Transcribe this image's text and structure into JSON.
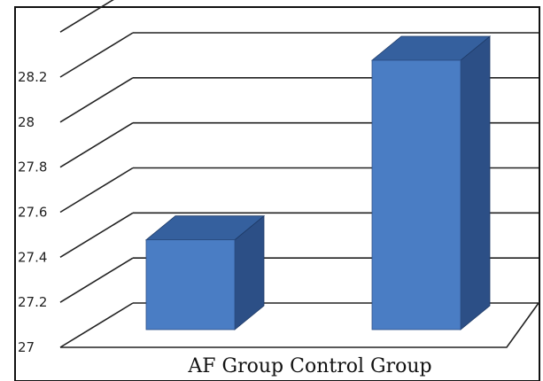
{
  "chart_data": {
    "type": "bar",
    "style": "3d",
    "categories": [
      "AF Group",
      "Control Group"
    ],
    "values": [
      27.4,
      28.2
    ],
    "category_axis_label": "AF Group Control Group",
    "ylim": [
      27,
      28.2
    ],
    "yticks": [
      27,
      27.2,
      27.4,
      27.6,
      27.8,
      28,
      28.2
    ],
    "ytick_labels": [
      "27",
      "27.2",
      "27.4",
      "27.6",
      "27.8",
      "28",
      "28.2"
    ],
    "grid": true,
    "legend": "none",
    "colors": {
      "bar_front": "#4a7dc4",
      "bar_side": "#2c4f86",
      "bar_top": "#35609e",
      "grid": "#222222"
    }
  }
}
